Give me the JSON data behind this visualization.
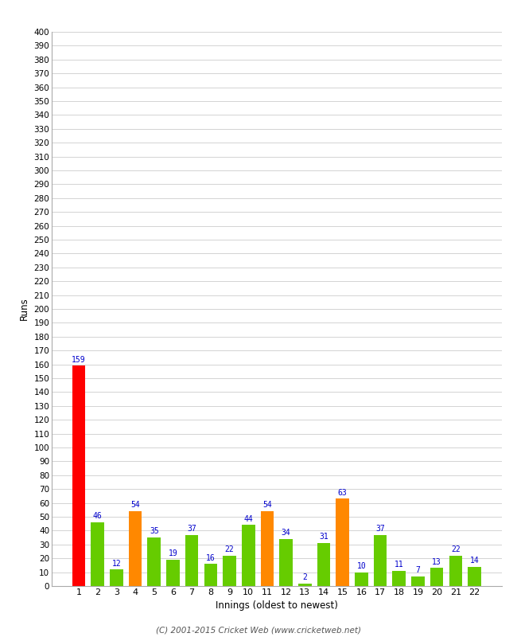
{
  "xlabel": "Innings (oldest to newest)",
  "ylabel": "Runs",
  "values": [
    159,
    46,
    12,
    54,
    35,
    19,
    37,
    16,
    22,
    44,
    54,
    34,
    2,
    31,
    63,
    10,
    37,
    11,
    7,
    13,
    22,
    14
  ],
  "colors": [
    "#ff0000",
    "#66cc00",
    "#66cc00",
    "#ff8800",
    "#66cc00",
    "#66cc00",
    "#66cc00",
    "#66cc00",
    "#66cc00",
    "#66cc00",
    "#ff8800",
    "#66cc00",
    "#66cc00",
    "#66cc00",
    "#ff8800",
    "#66cc00",
    "#66cc00",
    "#66cc00",
    "#66cc00",
    "#66cc00",
    "#66cc00",
    "#66cc00"
  ],
  "categories": [
    "1",
    "2",
    "3",
    "4",
    "5",
    "6",
    "7",
    "8",
    "9",
    "10",
    "11",
    "12",
    "13",
    "14",
    "15",
    "16",
    "17",
    "18",
    "19",
    "20",
    "21",
    "22"
  ],
  "ylim": [
    0,
    400
  ],
  "ytick_step": 10,
  "label_color": "#0000cc",
  "bg_color": "#ffffff",
  "grid_color": "#cccccc",
  "footer": "(C) 2001-2015 Cricket Web (www.cricketweb.net)"
}
